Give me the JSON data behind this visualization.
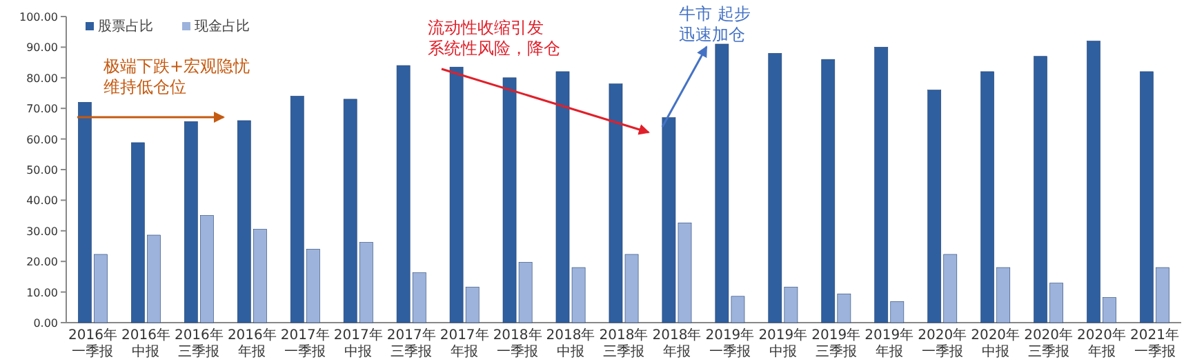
{
  "chart_data": {
    "type": "bar",
    "categories": [
      "2016年一季报",
      "2016年中报",
      "2016年三季报",
      "2016年年报",
      "2017年一季报",
      "2017年中报",
      "2017年三季报",
      "2017年年报",
      "2018年一季报",
      "2018年中报",
      "2018年三季报",
      "2018年年报",
      "2019年一季报",
      "2019年中报",
      "2019年三季报",
      "2019年年报",
      "2020年一季报",
      "2020年中报",
      "2020年三季报",
      "2020年年报",
      "2021年一季报"
    ],
    "series": [
      {
        "name": "股票占比",
        "color": "#2f5f9f",
        "values": [
          72,
          58.8,
          65.7,
          66,
          74,
          73,
          84,
          83.5,
          80,
          82,
          78,
          67,
          91,
          88,
          86,
          90,
          76,
          82,
          87,
          92,
          82
        ]
      },
      {
        "name": "现金占比",
        "color": "#9db3dc",
        "values": [
          22.3,
          28.6,
          35,
          30.5,
          24,
          26.2,
          16.3,
          11.6,
          19.7,
          18,
          22.3,
          32.6,
          8.6,
          11.6,
          9.4,
          6.9,
          22.3,
          18,
          12.9,
          8.2,
          18
        ]
      }
    ],
    "ylim": [
      0,
      100
    ],
    "yticks": [
      {
        "value": 0,
        "label": "0.00"
      },
      {
        "value": 10,
        "label": "10.00"
      },
      {
        "value": 20,
        "label": "20.00"
      },
      {
        "value": 30,
        "label": "30.00"
      },
      {
        "value": 40,
        "label": "40.00"
      },
      {
        "value": 50,
        "label": "50.00"
      },
      {
        "value": 60,
        "label": "60.00"
      },
      {
        "value": 70,
        "label": "70.00"
      },
      {
        "value": 80,
        "label": "80.00"
      },
      {
        "value": 90,
        "label": "90.00"
      },
      {
        "value": 100,
        "label": "100.00"
      }
    ],
    "legend": "top left",
    "annotations": [
      "极端下跌+宏观隐忧维持低仓位",
      "流动性收缩引发系统性风险，降仓",
      "牛市 起步迅速加仓"
    ]
  }
}
